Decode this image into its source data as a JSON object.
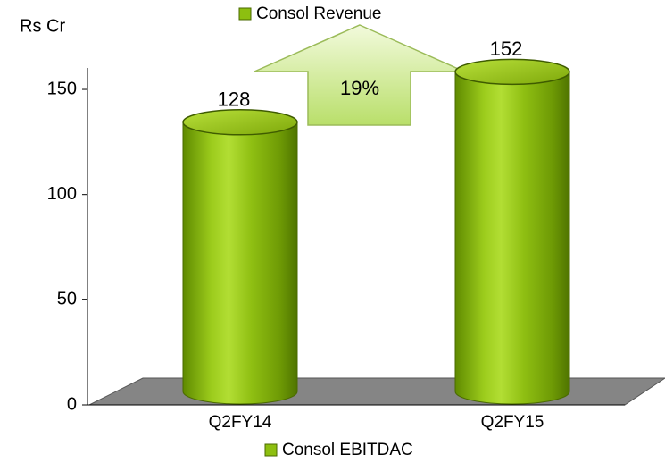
{
  "chart_data": {
    "type": "cylinder-bar",
    "y_label": "Rs Cr",
    "categories": [
      "Q2FY14",
      "Q2FY15"
    ],
    "series": [
      {
        "name": "Consol Revenue",
        "color": "#8dbf10",
        "values": [
          128,
          152
        ]
      }
    ],
    "footer_legend": "Consol EBITDAC",
    "annotation": "19%",
    "ylim": [
      0,
      160
    ],
    "yticks": [
      0,
      50,
      100,
      150
    ],
    "grid": false
  }
}
